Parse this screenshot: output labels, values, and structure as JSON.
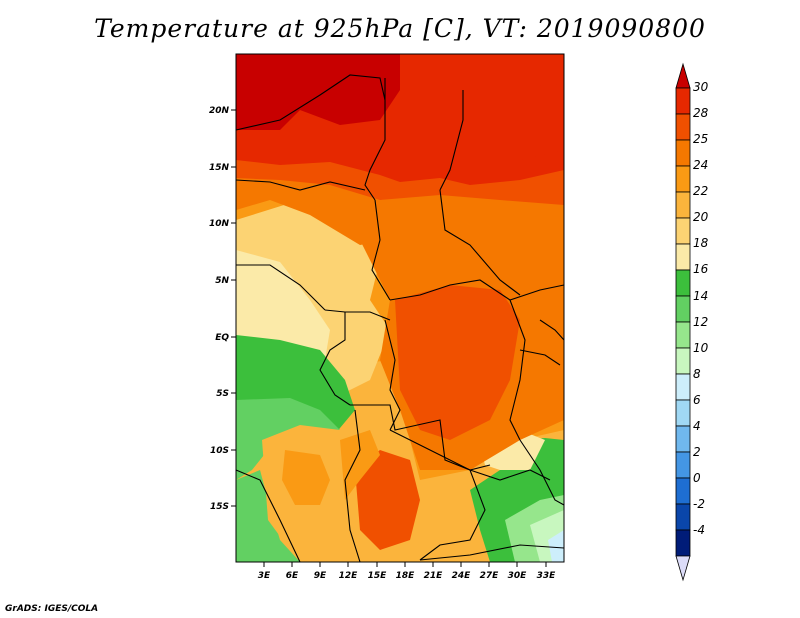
{
  "title": "Temperature at 925hPa [C], VT: 2019090800",
  "credit": "GrADS: IGES/COLA",
  "map": {
    "lat_ticks": [
      "20N",
      "15N",
      "10N",
      "5N",
      "EQ",
      "5S",
      "10S",
      "15S"
    ],
    "lon_ticks": [
      "3E",
      "6E",
      "9E",
      "12E",
      "15E",
      "18E",
      "21E",
      "24E",
      "27E",
      "30E",
      "33E"
    ]
  },
  "colorbar": {
    "labels": [
      "30",
      "28",
      "25",
      "24",
      "22",
      "20",
      "18",
      "16",
      "14",
      "12",
      "10",
      "8",
      "6",
      "4",
      "2",
      "0",
      "-2",
      "-4"
    ],
    "colors": [
      "#c80000",
      "#e62800",
      "#f05000",
      "#f57800",
      "#fa9a14",
      "#fbb43c",
      "#fcd373",
      "#fbeaa8",
      "#3cbf3c",
      "#62d062",
      "#96e68c",
      "#c8f7bf",
      "#cdeefb",
      "#a0d8f4",
      "#70b8ee",
      "#4496e4",
      "#1e6ed2",
      "#0a46aa",
      "#001c78",
      "#dcdcf8"
    ]
  }
}
